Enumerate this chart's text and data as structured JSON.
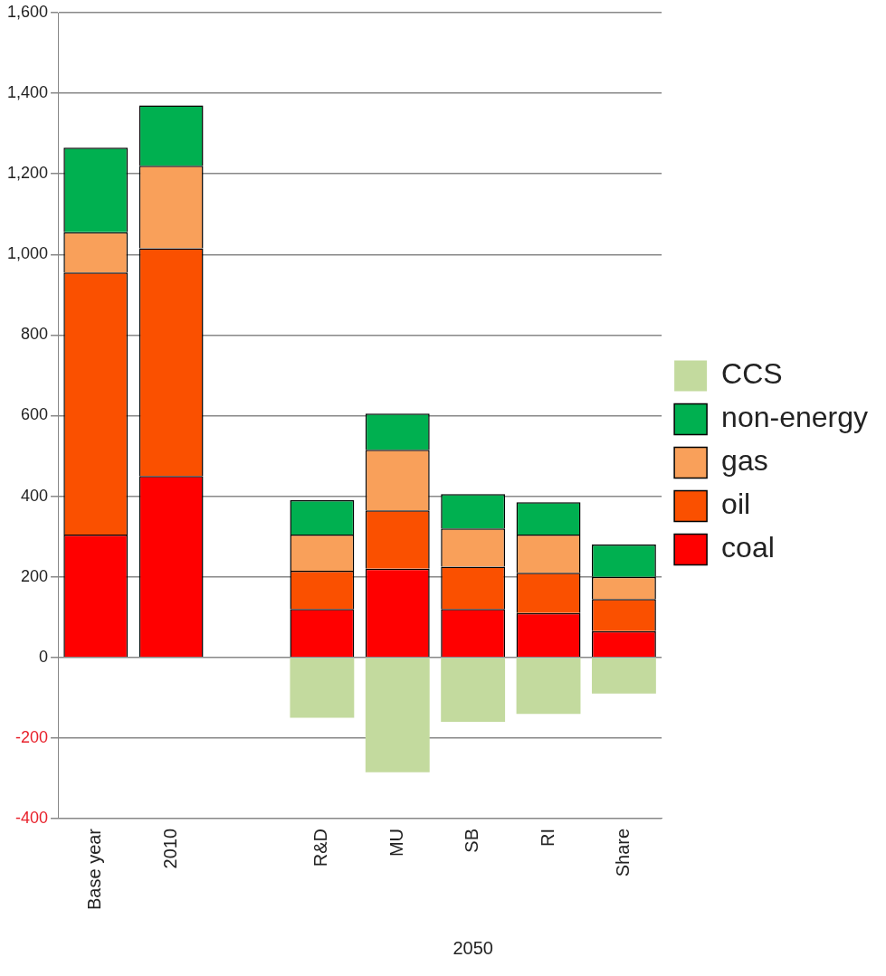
{
  "chart_data": {
    "type": "bar",
    "stacked": true,
    "categories": [
      "Base year",
      "2010",
      null,
      "R&D",
      "MU",
      "SB",
      "RI",
      "Share"
    ],
    "series": [
      {
        "name": "coal",
        "color": "#ff0000",
        "values": [
          305,
          450,
          null,
          120,
          220,
          120,
          110,
          65
        ]
      },
      {
        "name": "oil",
        "color": "#fa5000",
        "values": [
          650,
          565,
          null,
          95,
          145,
          105,
          100,
          80
        ]
      },
      {
        "name": "gas",
        "color": "#f9a05a",
        "values": [
          100,
          205,
          null,
          90,
          150,
          95,
          95,
          55
        ]
      },
      {
        "name": "non-energy",
        "color": "#00b050",
        "values": [
          210,
          150,
          null,
          85,
          90,
          85,
          80,
          80
        ]
      },
      {
        "name": "CCS",
        "color": "#c3da9e",
        "values": [
          null,
          null,
          null,
          -150,
          -285,
          -160,
          -140,
          -90
        ]
      }
    ],
    "ylim": [
      -400,
      1600
    ],
    "yticks": [
      {
        "value": -400,
        "label": "-400"
      },
      {
        "value": -200,
        "label": "-200"
      },
      0,
      200,
      400,
      600,
      800,
      {
        "value": 1000,
        "label": "1,000"
      },
      {
        "value": 1200,
        "label": "1,200"
      },
      {
        "value": 1400,
        "label": "1,400"
      },
      {
        "value": 1600,
        "label": "1,600"
      }
    ],
    "grid": "y",
    "legend": "right",
    "annotations": [
      "2050"
    ]
  }
}
